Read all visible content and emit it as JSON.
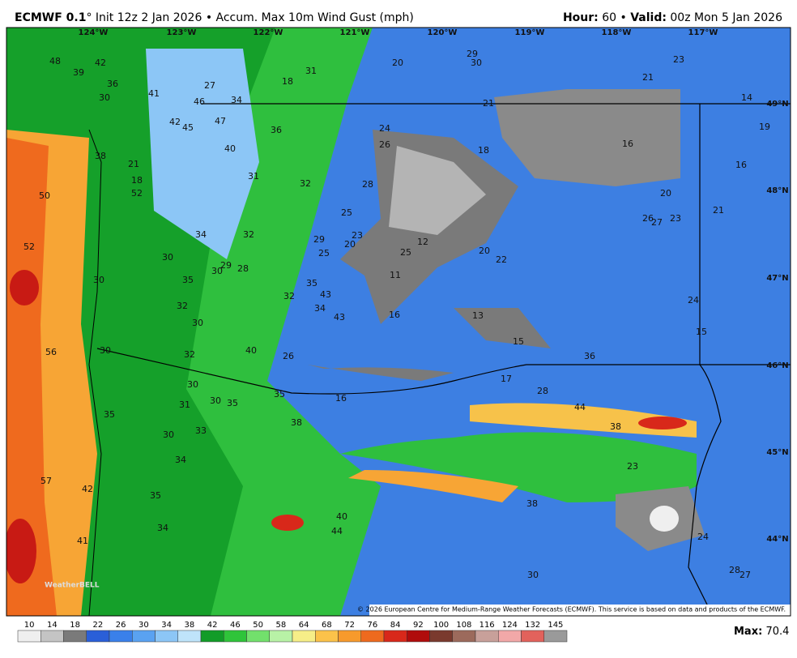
{
  "header": {
    "model": "ECMWF 0.1",
    "desc": "° Init 12z 2 Jan 2026 • Accum. Max 10m Wind Gust (mph)",
    "hour_label": "Hour:",
    "hour": "60",
    "sep": "•",
    "valid_label": "Valid:",
    "valid": "00z Mon 5 Jan 2026"
  },
  "map": {
    "longitudes": [
      "124°W",
      "123°W",
      "122°W",
      "121°W",
      "120°W",
      "119°W",
      "118°W",
      "117°W"
    ],
    "latitudes": [
      "49°N",
      "48°N",
      "47°N",
      "46°N",
      "45°N",
      "44°N"
    ],
    "labels": [
      "48",
      "42",
      "39",
      "36",
      "27",
      "18",
      "31",
      "20",
      "29",
      "30",
      "23",
      "21",
      "41",
      "30",
      "46",
      "34",
      "21",
      "14",
      "42",
      "45",
      "47",
      "36",
      "24",
      "19",
      "26",
      "40",
      "18",
      "16",
      "38",
      "21",
      "31",
      "32",
      "28",
      "16",
      "18",
      "52",
      "50",
      "20",
      "25",
      "26",
      "27",
      "23",
      "21",
      "34",
      "32",
      "23",
      "29",
      "12",
      "20",
      "25",
      "25",
      "20",
      "22",
      "52",
      "30",
      "29",
      "30",
      "28",
      "11",
      "35",
      "30",
      "35",
      "43",
      "32",
      "32",
      "34",
      "43",
      "16",
      "13",
      "24",
      "30",
      "15",
      "15",
      "40",
      "30",
      "32",
      "26",
      "56",
      "36",
      "17",
      "30",
      "28",
      "16",
      "31",
      "30",
      "35",
      "35",
      "44",
      "35",
      "38",
      "38",
      "33",
      "30",
      "34",
      "23",
      "57",
      "42",
      "35",
      "38",
      "40",
      "34",
      "44",
      "41",
      "24",
      "30",
      "28",
      "27"
    ],
    "watermark": "WeatherBELL",
    "copyright": "© 2026 European Centre for Medium-Range Weather Forecasts (ECMWF). This service is based on data and products of the ECMWF."
  },
  "colorbar": {
    "ticks": [
      10,
      14,
      18,
      22,
      26,
      30,
      34,
      38,
      42,
      46,
      50,
      58,
      64,
      68,
      72,
      76,
      84,
      92,
      100,
      108,
      116,
      124,
      132,
      145
    ],
    "colors": [
      "#efefef",
      "#c4c4c4",
      "#7a7a7a",
      "#2a5fd8",
      "#3a80ea",
      "#5aa2f1",
      "#8cc6f6",
      "#bfe4fa",
      "#129c28",
      "#2fc43a",
      "#72e06c",
      "#b8f2a6",
      "#f6ee88",
      "#fbc24a",
      "#f79a2c",
      "#ee6a1e",
      "#d8281a",
      "#b00c0c",
      "#7a3a2e",
      "#9c6a5c",
      "#c8a09a",
      "#f2a8a8",
      "#e2625c",
      "#9a9a9a"
    ]
  },
  "max": {
    "label": "Max:",
    "value": "70.4"
  }
}
